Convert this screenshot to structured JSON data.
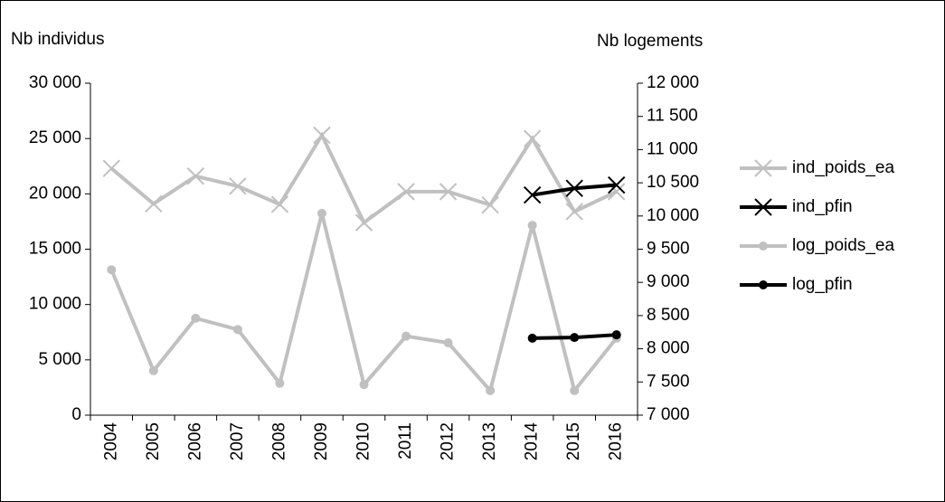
{
  "chart_data": {
    "type": "line",
    "y_label": "Nb individus",
    "y2_label": "Nb logements",
    "categories": [
      "2004",
      "2005",
      "2006",
      "2007",
      "2008",
      "2009",
      "2010",
      "2011",
      "2012",
      "2013",
      "2014",
      "2015",
      "2016"
    ],
    "ylim": [
      0,
      30000
    ],
    "yticks": [
      0,
      {
        "value": 5000,
        "label": "5 000"
      },
      {
        "value": 10000,
        "label": "10 000"
      },
      {
        "value": 15000,
        "label": "15 000"
      },
      {
        "value": 20000,
        "label": "20 000"
      },
      {
        "value": 25000,
        "label": "25 000"
      },
      {
        "value": 30000,
        "label": "30 000"
      }
    ],
    "y2lim": [
      7000,
      12000
    ],
    "y2ticks": [
      {
        "value": 7000,
        "label": "7 000"
      },
      {
        "value": 7500,
        "label": "7 500"
      },
      {
        "value": 8000,
        "label": "8 000"
      },
      {
        "value": 8500,
        "label": "8 500"
      },
      {
        "value": 9000,
        "label": "9 000"
      },
      {
        "value": 9500,
        "label": "9 500"
      },
      {
        "value": 10000,
        "label": "10 000"
      },
      {
        "value": 10500,
        "label": "10 500"
      },
      {
        "value": 11000,
        "label": "11 000"
      },
      {
        "value": 11500,
        "label": "11 500"
      },
      {
        "value": 12000,
        "label": "12 000"
      }
    ],
    "legend": "right",
    "series": [
      {
        "name": "ind_poids_ea",
        "color": "#c0c0c0",
        "marker": "x",
        "values": [
          22300,
          19100,
          21600,
          20700,
          19050,
          25300,
          17400,
          20200,
          20200,
          19000,
          25000,
          18400,
          20200
        ]
      },
      {
        "name": "ind_pfin",
        "color": "#000000",
        "marker": "x",
        "values": [
          null,
          null,
          null,
          null,
          null,
          null,
          null,
          null,
          null,
          null,
          19900,
          20500,
          20800
        ]
      },
      {
        "name": "log_poids_ea",
        "color": "#c0c0c0",
        "marker": "circle",
        "axis": "y2",
        "values": [
          9190,
          7670,
          8460,
          8290,
          7480,
          10040,
          7460,
          8190,
          8090,
          7370,
          9860,
          7370,
          8160
        ]
      },
      {
        "name": "log_pfin",
        "color": "#000000",
        "marker": "circle",
        "axis": "y2",
        "values": [
          null,
          null,
          null,
          null,
          null,
          null,
          null,
          null,
          null,
          null,
          8160,
          8170,
          8210
        ]
      }
    ]
  }
}
